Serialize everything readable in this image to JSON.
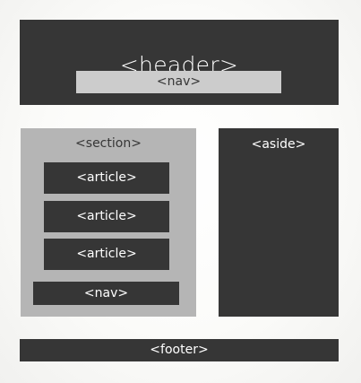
{
  "diagram": {
    "header": {
      "label": "<header>",
      "nav_label": "<nav>"
    },
    "section": {
      "label": "<section>",
      "articles": [
        "<article>",
        "<article>",
        "<article>"
      ],
      "nav_label": "<nav>"
    },
    "aside": {
      "label": "<aside>"
    },
    "footer": {
      "label": "<footer>"
    },
    "colors": {
      "dark_block": "#363636",
      "section_block": "#b5b5b5",
      "nav_block": "#cccccc",
      "background": "#fbfbf9",
      "text_light": "#ffffff",
      "text_dark": "#363636"
    }
  }
}
